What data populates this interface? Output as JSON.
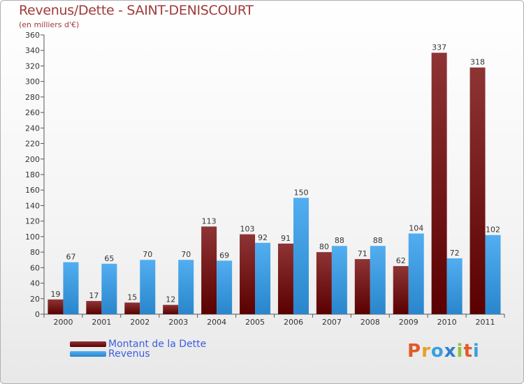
{
  "title": "Revenus/Dette - SAINT-DENISCOURT",
  "subtitle": "(en milliers d'€)",
  "logo_text": "Proxiti",
  "colors": {
    "dette": "#7a1a1a",
    "revenus": "#3f9ee3",
    "title": "#a03a3a",
    "legend_text": "#3a5ee0"
  },
  "legend": {
    "dette": "Montant de la Dette",
    "revenus": "Revenus"
  },
  "chart_data": {
    "type": "bar",
    "title": "Revenus/Dette - SAINT-DENISCOURT",
    "subtitle": "(en milliers d'€)",
    "categories": [
      "2000",
      "2001",
      "2002",
      "2003",
      "2004",
      "2005",
      "2006",
      "2007",
      "2008",
      "2009",
      "2010",
      "2011"
    ],
    "series": [
      {
        "name": "Montant de la Dette",
        "values": [
          19,
          17,
          15,
          12,
          113,
          103,
          91,
          80,
          71,
          62,
          337,
          318
        ]
      },
      {
        "name": "Revenus",
        "values": [
          67,
          65,
          70,
          70,
          69,
          92,
          150,
          88,
          88,
          104,
          72,
          102
        ]
      }
    ],
    "ylim": [
      0,
      360
    ],
    "yticks": [
      0,
      20,
      40,
      60,
      80,
      100,
      120,
      140,
      160,
      180,
      200,
      220,
      240,
      260,
      280,
      300,
      320,
      340,
      360
    ],
    "grid": false,
    "legend_position": "bottom-left"
  }
}
